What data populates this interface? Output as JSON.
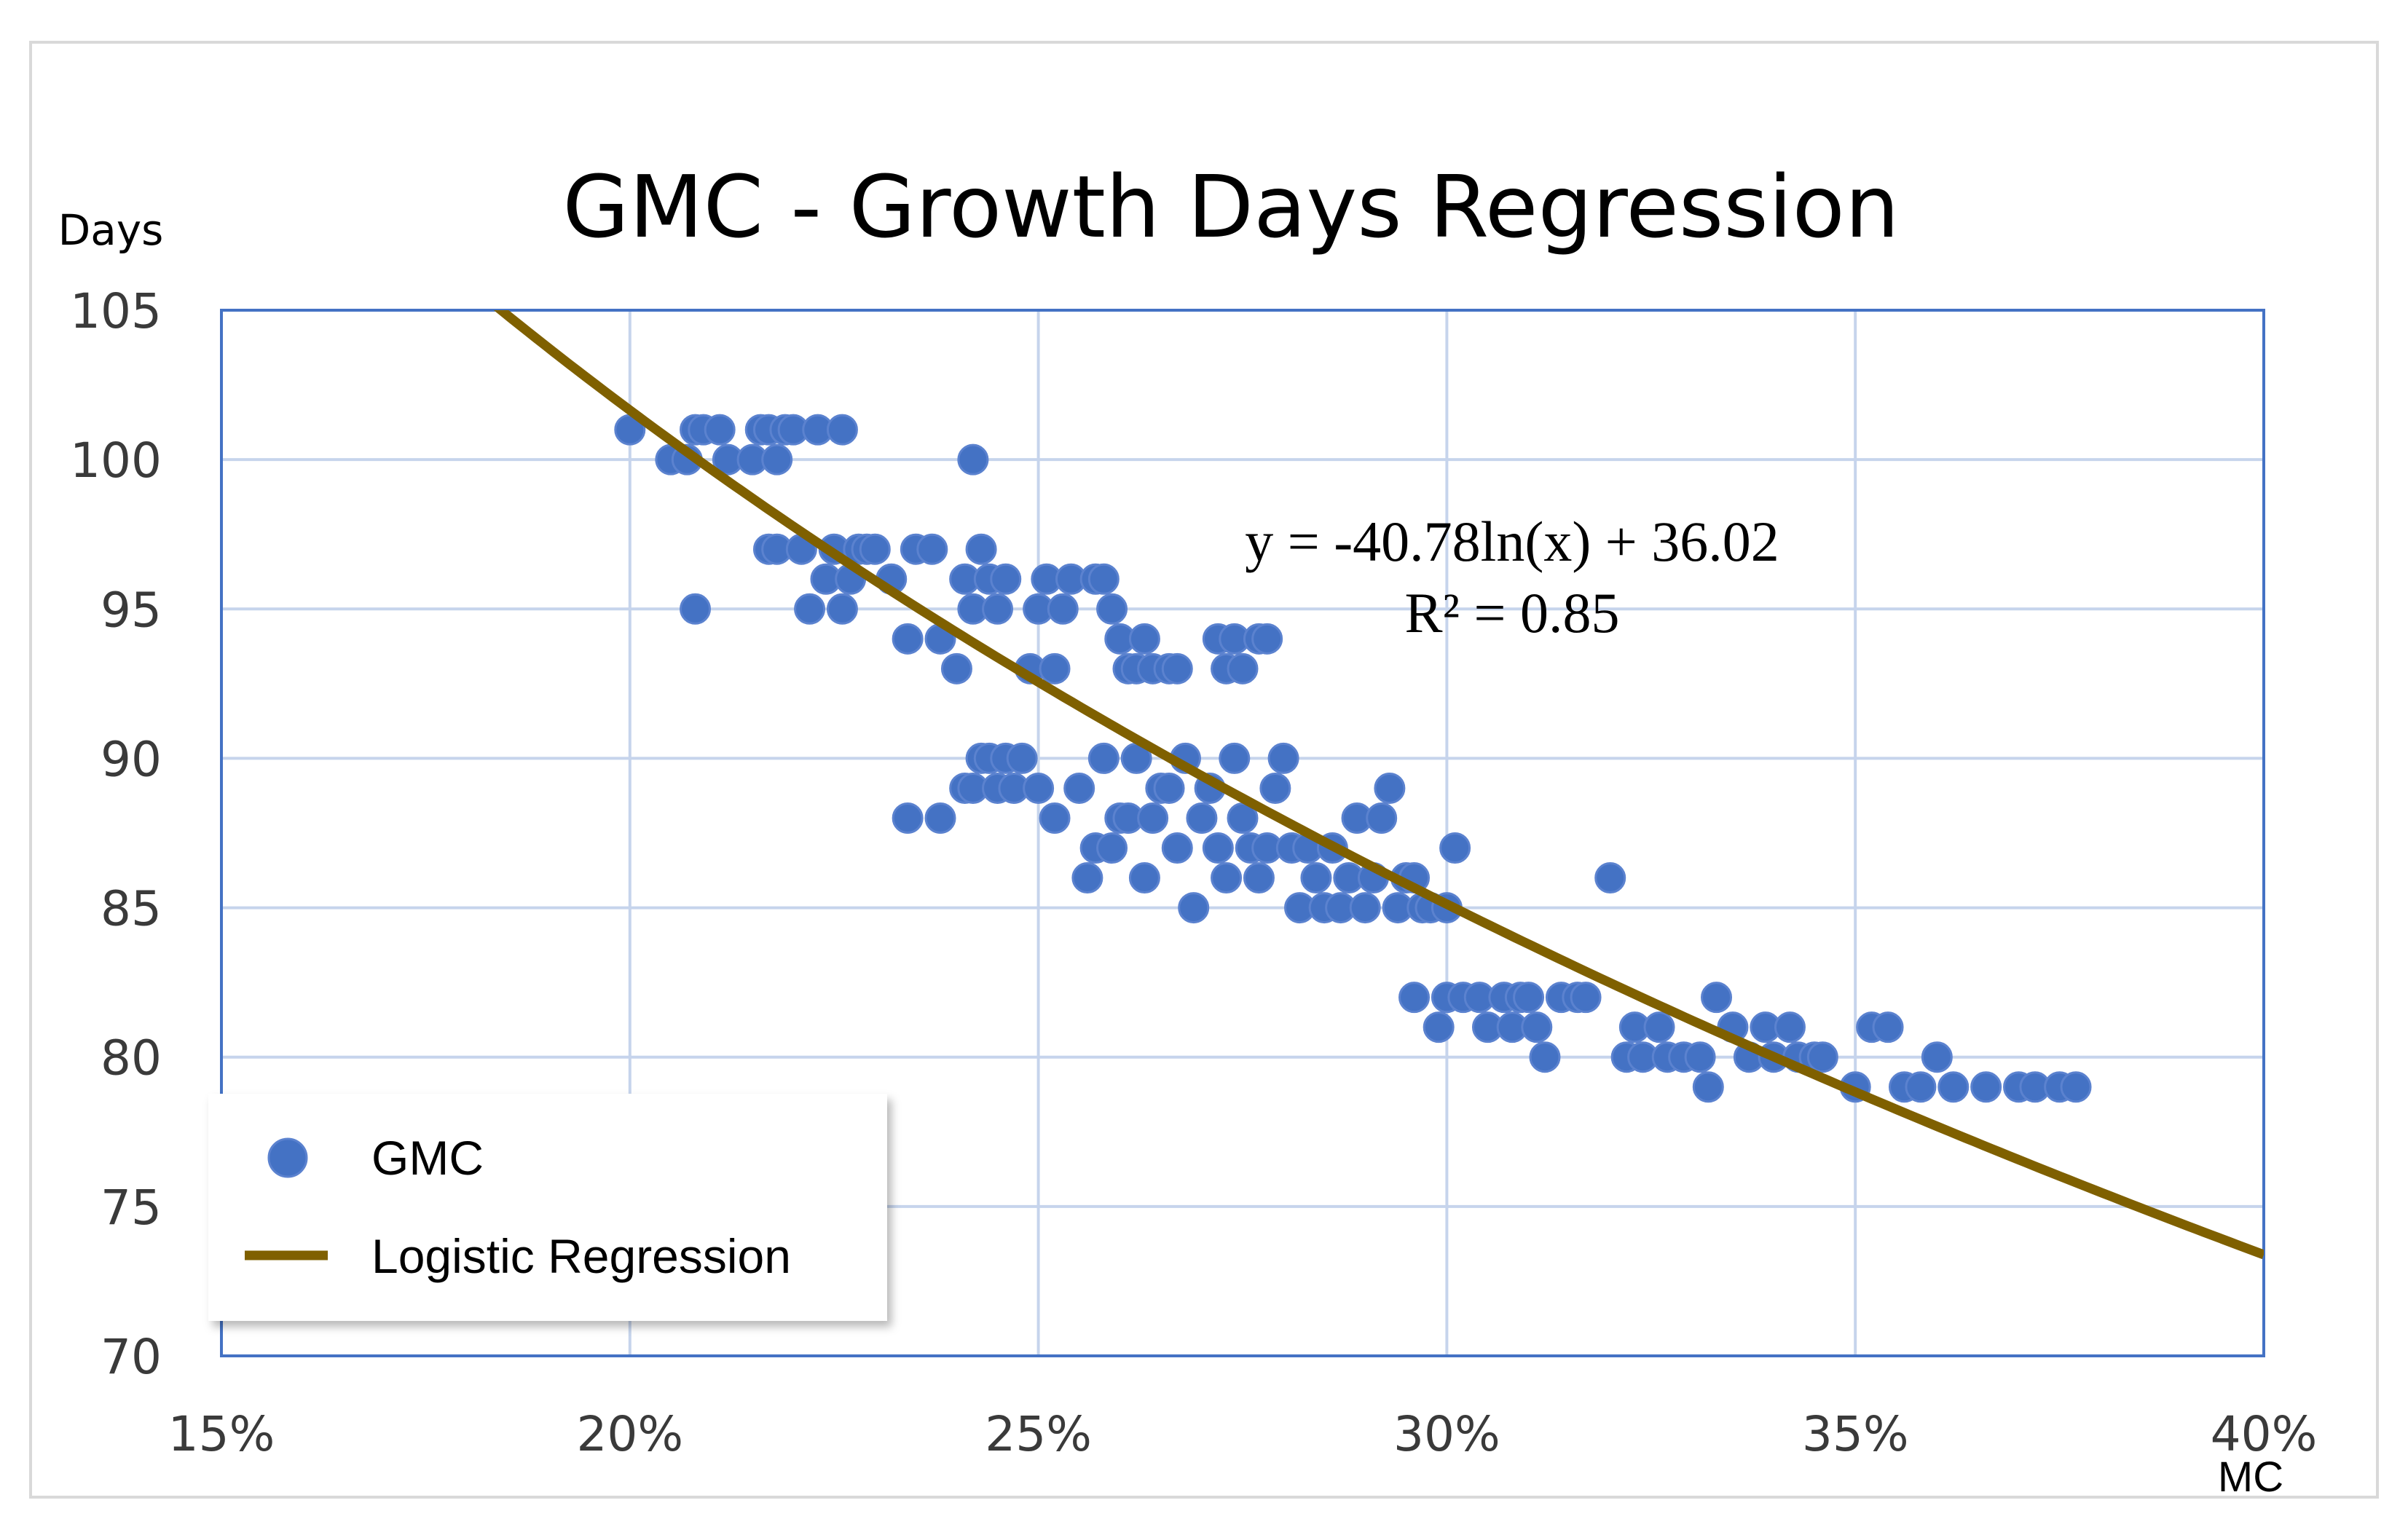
{
  "chart_data": {
    "type": "scatter",
    "title": "GMC - Growth Days Regression",
    "xlabel": "MC",
    "ylabel": "Days",
    "xlim": [
      0.15,
      0.4
    ],
    "ylim": [
      70,
      105
    ],
    "x_ticks": [
      0.15,
      0.2,
      0.25,
      0.3,
      0.35,
      0.4
    ],
    "x_tick_labels": [
      "15%",
      "20%",
      "25%",
      "30%",
      "35%",
      "40%"
    ],
    "y_ticks": [
      70,
      75,
      80,
      85,
      90,
      95,
      100,
      105
    ],
    "y_tick_labels": [
      "70",
      "75",
      "80",
      "85",
      "90",
      "95",
      "100",
      "105"
    ],
    "grid": true,
    "legend_position": "bottom-left",
    "series": [
      {
        "name": "GMC",
        "type": "scatter",
        "color": "#4472c4",
        "points": [
          [
            0.2,
            101
          ],
          [
            0.205,
            100
          ],
          [
            0.207,
            100
          ],
          [
            0.208,
            101
          ],
          [
            0.209,
            101
          ],
          [
            0.211,
            101
          ],
          [
            0.212,
            100
          ],
          [
            0.215,
            100
          ],
          [
            0.216,
            101
          ],
          [
            0.217,
            101
          ],
          [
            0.218,
            100
          ],
          [
            0.219,
            101
          ],
          [
            0.22,
            101
          ],
          [
            0.223,
            101
          ],
          [
            0.226,
            101
          ],
          [
            0.242,
            100
          ],
          [
            0.208,
            95
          ],
          [
            0.217,
            97
          ],
          [
            0.218,
            97
          ],
          [
            0.221,
            97
          ],
          [
            0.222,
            95
          ],
          [
            0.224,
            96
          ],
          [
            0.225,
            97
          ],
          [
            0.227,
            96
          ],
          [
            0.228,
            97
          ],
          [
            0.229,
            97
          ],
          [
            0.226,
            95
          ],
          [
            0.23,
            97
          ],
          [
            0.232,
            96
          ],
          [
            0.234,
            94
          ],
          [
            0.235,
            97
          ],
          [
            0.237,
            97
          ],
          [
            0.238,
            94
          ],
          [
            0.24,
            93
          ],
          [
            0.241,
            96
          ],
          [
            0.242,
            95
          ],
          [
            0.243,
            97
          ],
          [
            0.244,
            96
          ],
          [
            0.245,
            95
          ],
          [
            0.246,
            96
          ],
          [
            0.249,
            93
          ],
          [
            0.25,
            95
          ],
          [
            0.251,
            96
          ],
          [
            0.252,
            93
          ],
          [
            0.253,
            95
          ],
          [
            0.254,
            96
          ],
          [
            0.257,
            96
          ],
          [
            0.258,
            96
          ],
          [
            0.259,
            95
          ],
          [
            0.26,
            94
          ],
          [
            0.261,
            93
          ],
          [
            0.262,
            93
          ],
          [
            0.263,
            94
          ],
          [
            0.264,
            93
          ],
          [
            0.266,
            93
          ],
          [
            0.267,
            93
          ],
          [
            0.272,
            94
          ],
          [
            0.273,
            93
          ],
          [
            0.274,
            94
          ],
          [
            0.275,
            93
          ],
          [
            0.277,
            94
          ],
          [
            0.278,
            94
          ],
          [
            0.234,
            88
          ],
          [
            0.238,
            88
          ],
          [
            0.241,
            89
          ],
          [
            0.242,
            89
          ],
          [
            0.243,
            90
          ],
          [
            0.244,
            90
          ],
          [
            0.245,
            89
          ],
          [
            0.246,
            90
          ],
          [
            0.247,
            89
          ],
          [
            0.248,
            90
          ],
          [
            0.25,
            89
          ],
          [
            0.252,
            88
          ],
          [
            0.255,
            89
          ],
          [
            0.256,
            86
          ],
          [
            0.257,
            87
          ],
          [
            0.258,
            90
          ],
          [
            0.259,
            87
          ],
          [
            0.26,
            88
          ],
          [
            0.261,
            88
          ],
          [
            0.262,
            90
          ],
          [
            0.263,
            86
          ],
          [
            0.264,
            88
          ],
          [
            0.265,
            89
          ],
          [
            0.266,
            89
          ],
          [
            0.267,
            87
          ],
          [
            0.268,
            90
          ],
          [
            0.269,
            85
          ],
          [
            0.27,
            88
          ],
          [
            0.271,
            89
          ],
          [
            0.272,
            87
          ],
          [
            0.273,
            86
          ],
          [
            0.274,
            90
          ],
          [
            0.275,
            88
          ],
          [
            0.276,
            87
          ],
          [
            0.277,
            86
          ],
          [
            0.278,
            87
          ],
          [
            0.279,
            89
          ],
          [
            0.28,
            90
          ],
          [
            0.281,
            87
          ],
          [
            0.282,
            85
          ],
          [
            0.283,
            87
          ],
          [
            0.284,
            86
          ],
          [
            0.285,
            85
          ],
          [
            0.286,
            87
          ],
          [
            0.287,
            85
          ],
          [
            0.288,
            86
          ],
          [
            0.289,
            88
          ],
          [
            0.29,
            85
          ],
          [
            0.291,
            86
          ],
          [
            0.292,
            88
          ],
          [
            0.293,
            89
          ],
          [
            0.294,
            85
          ],
          [
            0.295,
            86
          ],
          [
            0.296,
            86
          ],
          [
            0.297,
            85
          ],
          [
            0.298,
            85
          ],
          [
            0.3,
            85
          ],
          [
            0.301,
            87
          ],
          [
            0.296,
            82
          ],
          [
            0.299,
            81
          ],
          [
            0.3,
            82
          ],
          [
            0.302,
            82
          ],
          [
            0.304,
            82
          ],
          [
            0.305,
            81
          ],
          [
            0.307,
            82
          ],
          [
            0.308,
            81
          ],
          [
            0.309,
            82
          ],
          [
            0.31,
            82
          ],
          [
            0.311,
            81
          ],
          [
            0.312,
            80
          ],
          [
            0.314,
            82
          ],
          [
            0.316,
            82
          ],
          [
            0.317,
            82
          ],
          [
            0.32,
            86
          ],
          [
            0.322,
            80
          ],
          [
            0.323,
            81
          ],
          [
            0.324,
            80
          ],
          [
            0.326,
            81
          ],
          [
            0.327,
            80
          ],
          [
            0.329,
            80
          ],
          [
            0.331,
            80
          ],
          [
            0.332,
            79
          ],
          [
            0.333,
            82
          ],
          [
            0.335,
            81
          ],
          [
            0.337,
            80
          ],
          [
            0.339,
            81
          ],
          [
            0.34,
            80
          ],
          [
            0.342,
            81
          ],
          [
            0.343,
            80
          ],
          [
            0.345,
            80
          ],
          [
            0.346,
            80
          ],
          [
            0.35,
            79
          ],
          [
            0.352,
            81
          ],
          [
            0.354,
            81
          ],
          [
            0.356,
            79
          ],
          [
            0.358,
            79
          ],
          [
            0.36,
            80
          ],
          [
            0.362,
            79
          ],
          [
            0.366,
            79
          ],
          [
            0.37,
            79
          ],
          [
            0.372,
            79
          ],
          [
            0.375,
            79
          ],
          [
            0.377,
            79
          ]
        ]
      },
      {
        "name": "Logistic Regression",
        "type": "line",
        "color": "#7f6000",
        "equation": "y = -40.78ln(x) + 36.02",
        "coefficients": {
          "a": -40.78,
          "b": 36.02
        },
        "x_range": [
          0.15,
          0.4
        ]
      }
    ],
    "annotations": {
      "equation": "y = -40.78ln(x) + 36.02",
      "r_squared": "R² = 0.85"
    }
  }
}
